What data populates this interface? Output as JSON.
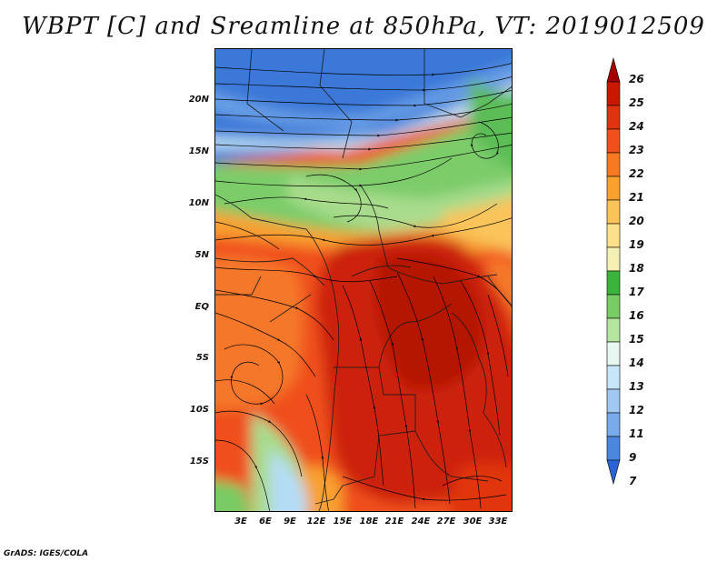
{
  "title": "WBPT [C] and Sreamline at 850hPa, VT: 2019012509",
  "credit": "GrADS: IGES/COLA",
  "map": {
    "lat_labels": [
      "20N",
      "15N",
      "10N",
      "5N",
      "EQ",
      "5S",
      "10S",
      "15S"
    ],
    "lon_labels": [
      "3E",
      "6E",
      "9E",
      "12E",
      "15E",
      "18E",
      "21E",
      "24E",
      "27E",
      "30E",
      "33E"
    ]
  },
  "colorbar": {
    "labels": [
      "26",
      "25",
      "24",
      "23",
      "22",
      "21",
      "20",
      "19",
      "18",
      "17",
      "16",
      "15",
      "14",
      "13",
      "12",
      "11",
      "9",
      "7"
    ],
    "colors": [
      "#a50000",
      "#c81800",
      "#e03410",
      "#f0501c",
      "#f57a22",
      "#f8a030",
      "#fac45a",
      "#fce08a",
      "#f5f0b4",
      "#3cb43c",
      "#78cc64",
      "#b4e6a0",
      "#e6f8f0",
      "#c8e6fa",
      "#a0c8f0",
      "#78aaec",
      "#4a88e0",
      "#2a64d4"
    ]
  }
}
